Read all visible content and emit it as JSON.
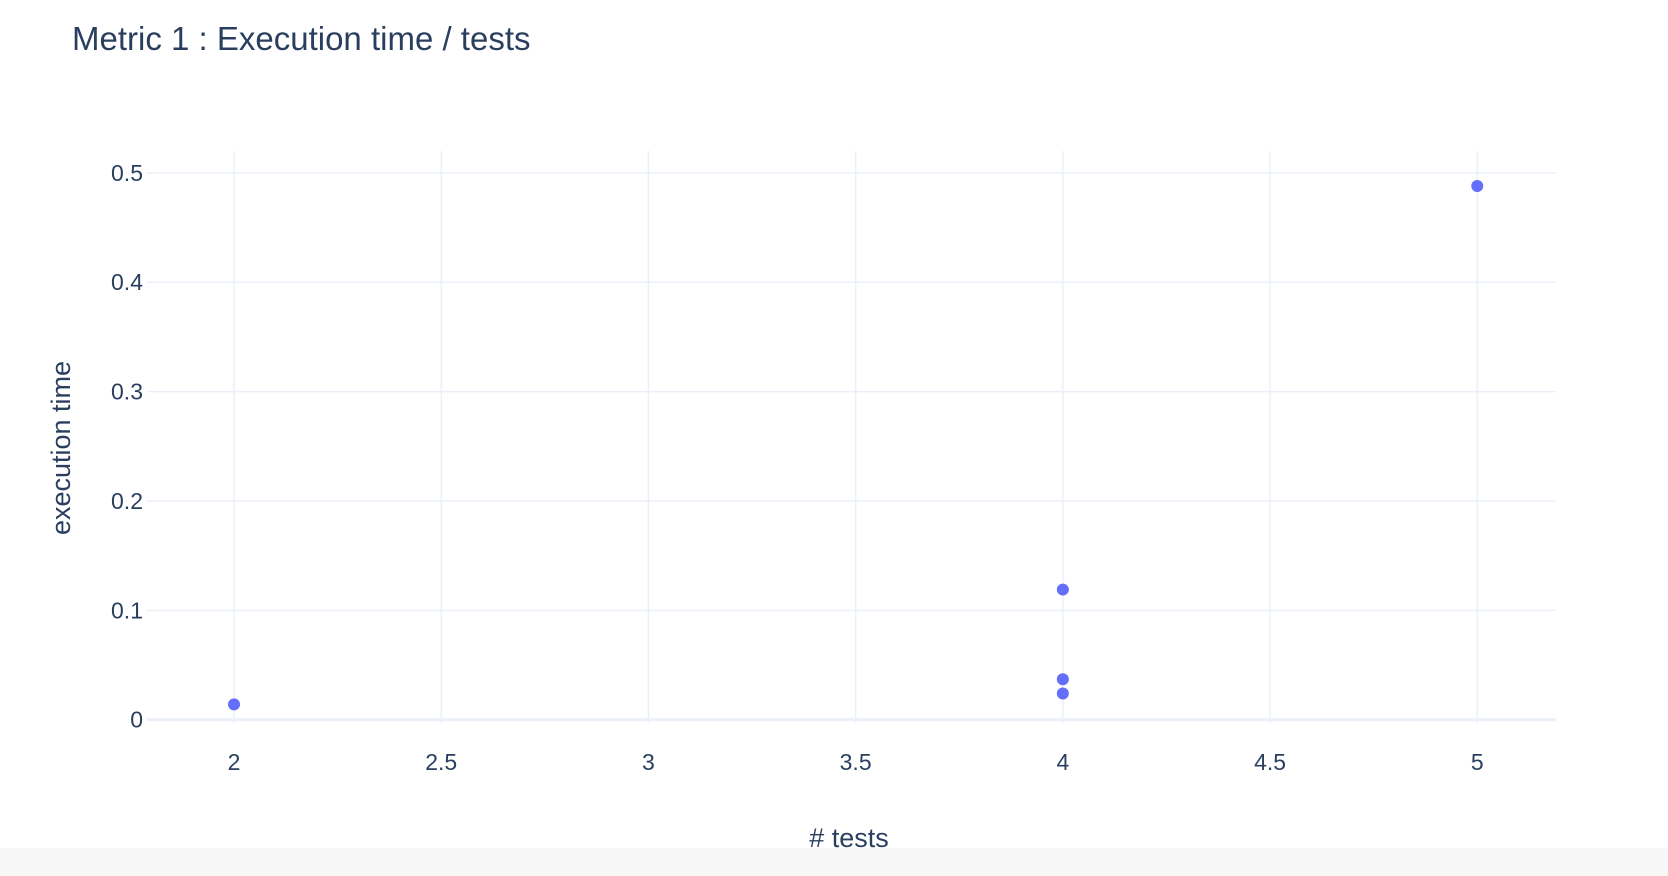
{
  "chart_data": {
    "type": "scatter",
    "title": "Metric 1 : Execution time / tests",
    "xlabel": "# tests",
    "ylabel": "execution time",
    "xlim": [
      1.79,
      5.19
    ],
    "ylim": [
      -0.003,
      0.52
    ],
    "x_ticks": [
      2,
      2.5,
      3,
      3.5,
      4,
      4.5,
      5
    ],
    "x_tick_labels": [
      "2",
      "2.5",
      "3",
      "3.5",
      "4",
      "4.5",
      "5"
    ],
    "y_ticks": [
      0,
      0.1,
      0.2,
      0.3,
      0.4,
      0.5
    ],
    "y_tick_labels": [
      "0",
      "0.1",
      "0.2",
      "0.3",
      "0.4",
      "0.5"
    ],
    "grid": true,
    "marker_color": "#636efa",
    "series": [
      {
        "x": [
          2,
          4,
          4,
          4,
          5
        ],
        "y": [
          0.014,
          0.119,
          0.037,
          0.024,
          0.488
        ]
      }
    ]
  }
}
